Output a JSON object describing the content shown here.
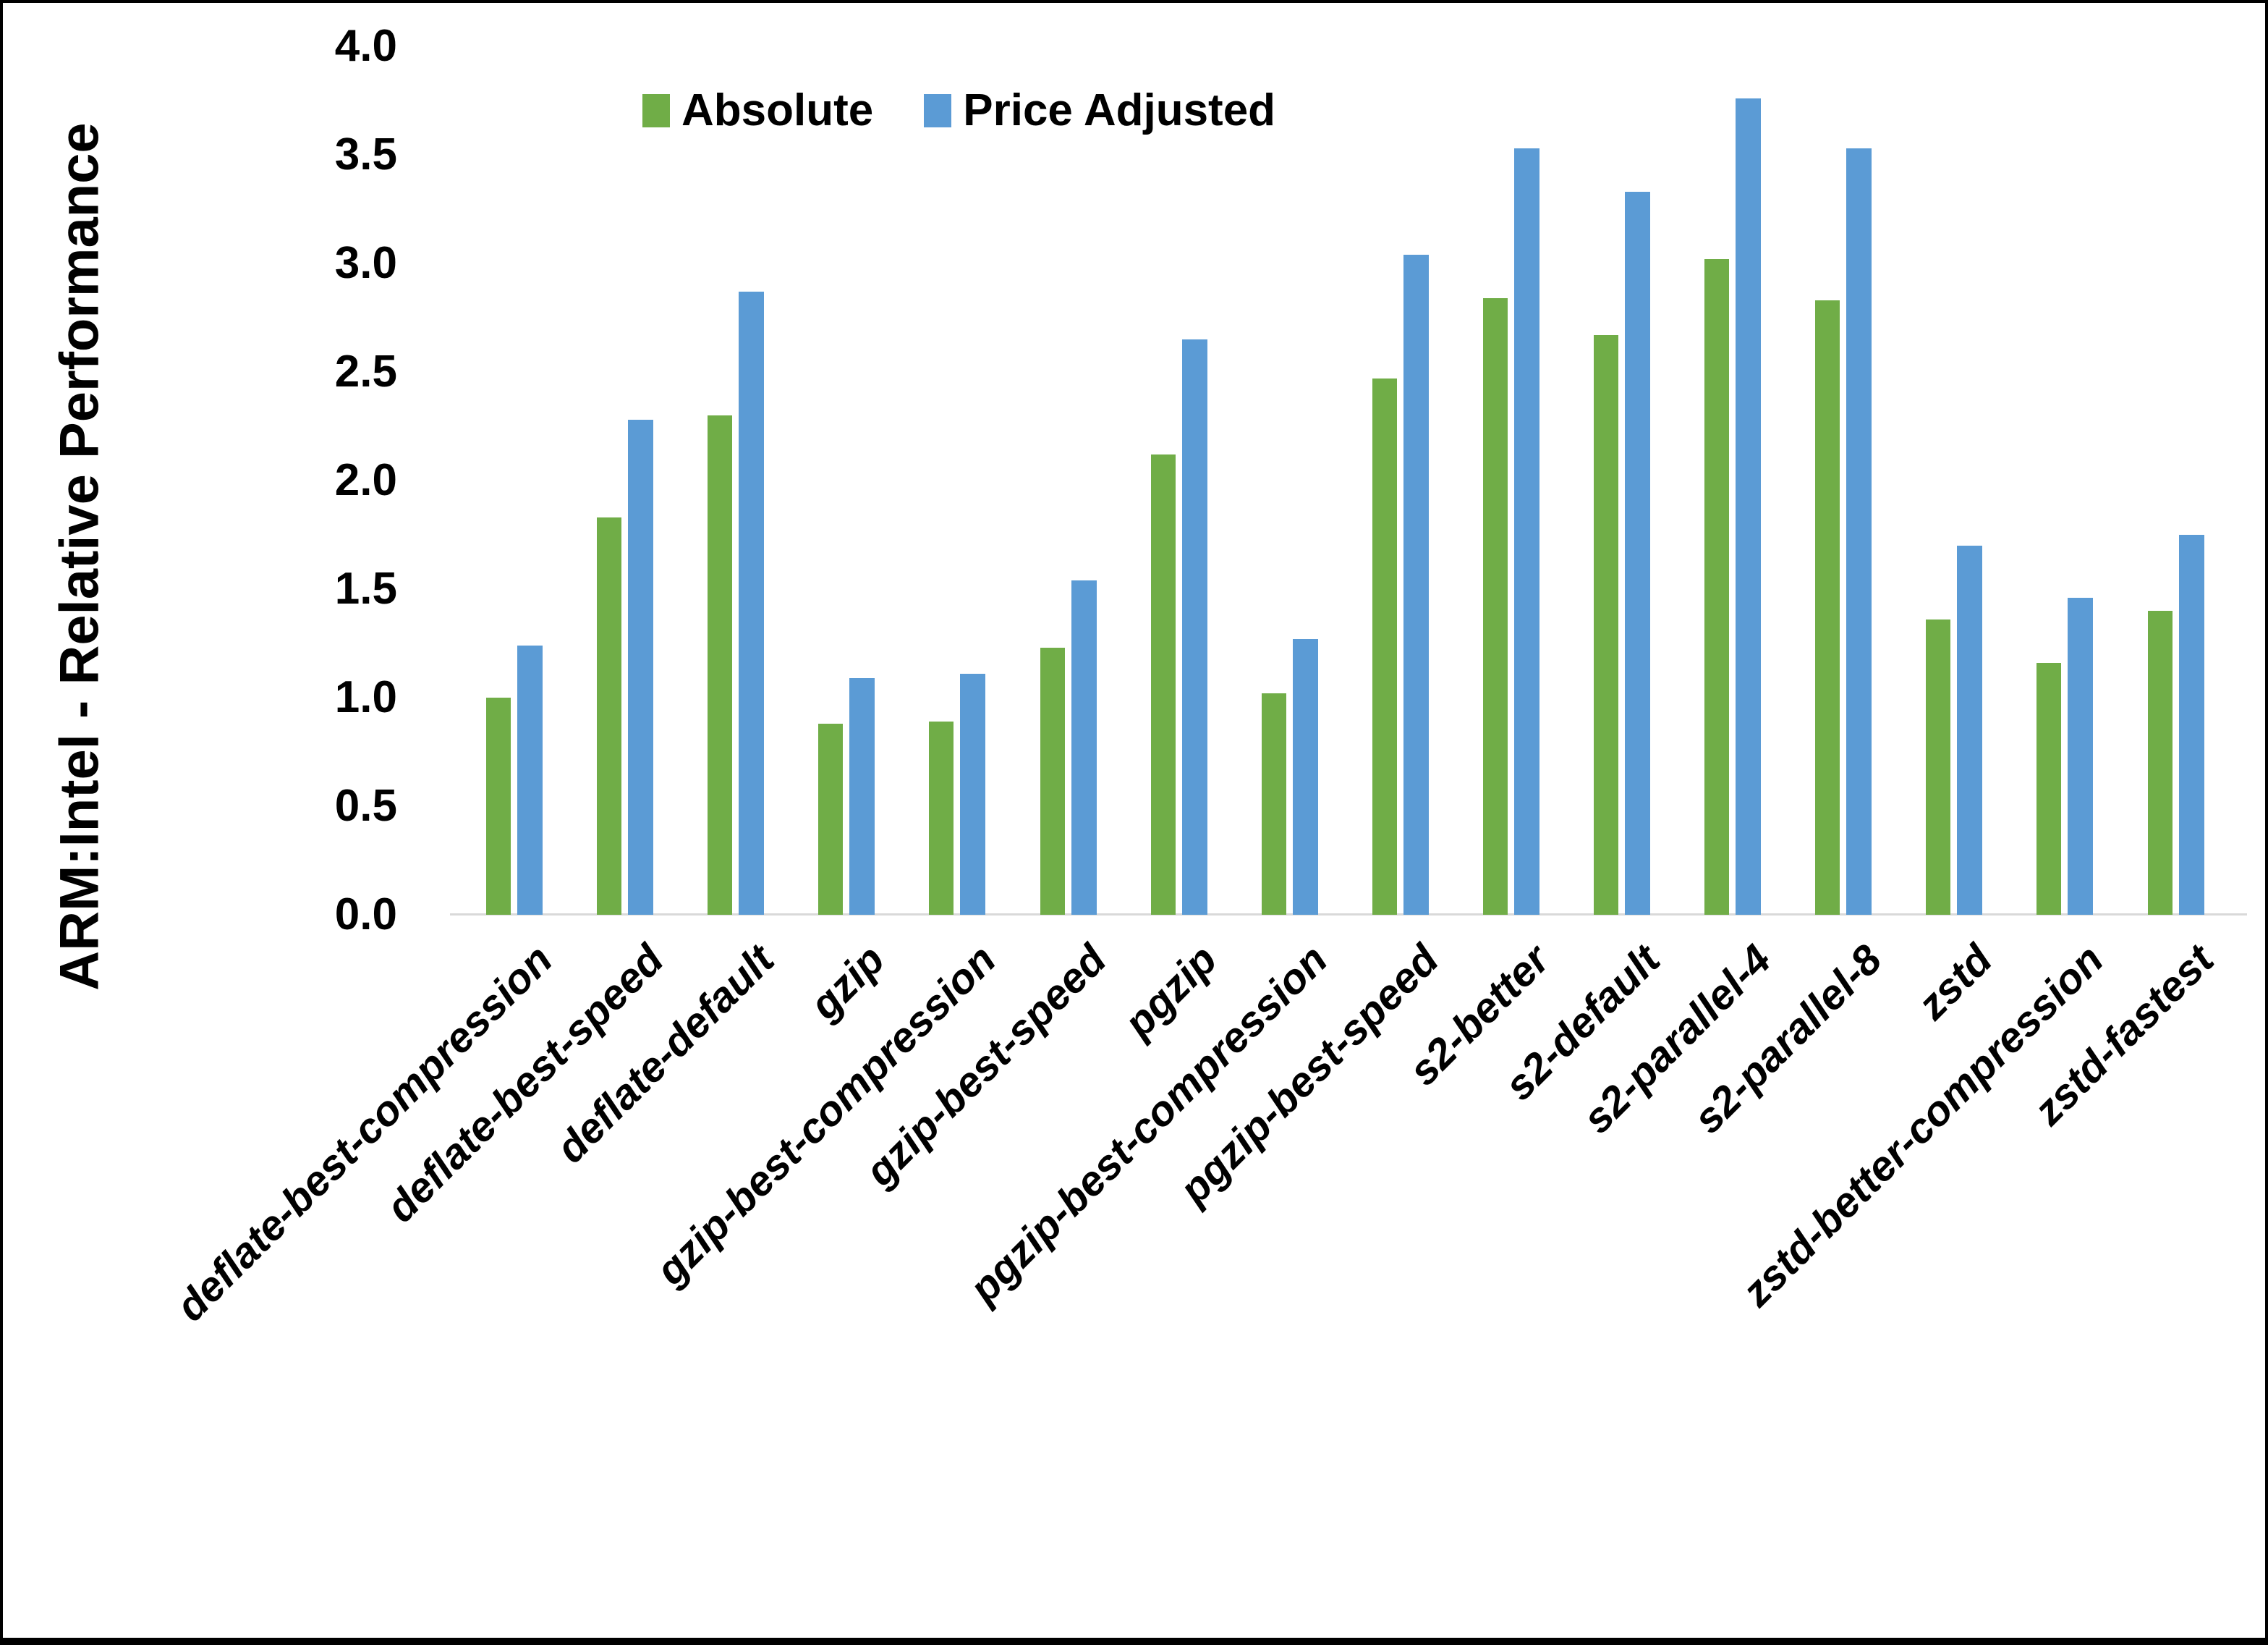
{
  "chart_data": {
    "type": "bar",
    "title": "",
    "xlabel": "",
    "ylabel": "ARM:Intel - Relative Performance",
    "ylim": [
      0.0,
      4.0
    ],
    "ytick_labels": [
      "0.0",
      "0.5",
      "1.0",
      "1.5",
      "2.0",
      "2.5",
      "3.0",
      "3.5",
      "4.0"
    ],
    "grid": false,
    "legend_position": "top-center",
    "axis_line_color": "#D9D9D9",
    "text_color": "#000000",
    "categories": [
      "deflate-best-compression",
      "deflate-best-speed",
      "deflate-default",
      "gzip",
      "gzip-best-compression",
      "gzip-best-speed",
      "pgzip",
      "pgzip-best-compression",
      "pgzip-best-speed",
      "s2-better",
      "s2-default",
      "s2-parallel-4",
      "s2-parallel-8",
      "zstd",
      "zstd-better-compression",
      "zstd-fastest"
    ],
    "series": [
      {
        "name": "Absolute",
        "color": "#70AD47",
        "values": [
          1.0,
          1.83,
          2.3,
          0.88,
          0.89,
          1.23,
          2.12,
          1.02,
          2.47,
          2.84,
          2.67,
          3.02,
          2.83,
          1.36,
          1.16,
          1.4
        ]
      },
      {
        "name": "Price Adjusted",
        "color": "#5B9BD5",
        "values": [
          1.24,
          2.28,
          2.87,
          1.09,
          1.11,
          1.54,
          2.65,
          1.27,
          3.04,
          3.53,
          3.33,
          3.76,
          3.53,
          1.7,
          1.46,
          1.75
        ]
      }
    ]
  }
}
